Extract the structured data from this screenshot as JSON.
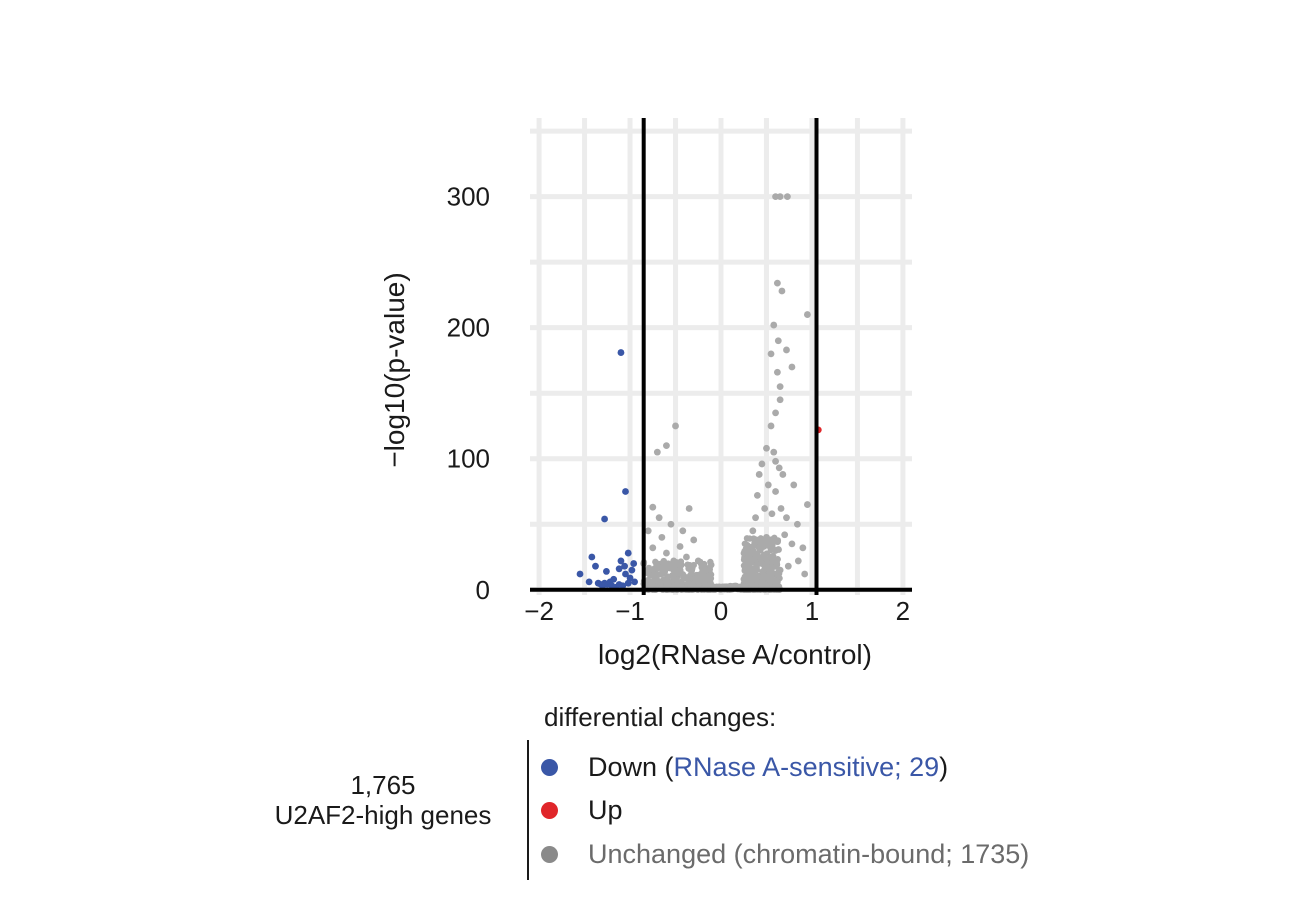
{
  "chart_data": {
    "type": "scatter",
    "xlabel": "log2(RNase A/control)",
    "ylabel": "−log10(p-value)",
    "xlim": [
      -2.1,
      2.1
    ],
    "ylim": [
      -4,
      360
    ],
    "xticks": [
      -2,
      -1,
      0,
      1,
      2
    ],
    "xtick_labels": [
      "−2",
      "−1",
      "0",
      "1",
      "2"
    ],
    "yticks": [
      0,
      100,
      200,
      300
    ],
    "ytick_labels": [
      "0",
      "100",
      "200",
      "300"
    ],
    "vlines": [
      -0.85,
      1.05
    ],
    "hline": 0,
    "grid": true,
    "colors": {
      "down": "#3a57a7",
      "up": "#e0262a",
      "unchanged": "#aaaaaa"
    },
    "series": [
      {
        "name": "Down",
        "color": "#3a57a7",
        "points": [
          [
            -1.1,
            181
          ],
          [
            -1.05,
            75
          ],
          [
            -1.28,
            54
          ],
          [
            -1.42,
            25
          ],
          [
            -1.55,
            12
          ],
          [
            -1.35,
            5
          ],
          [
            -1.25,
            4
          ],
          [
            -1.18,
            8
          ],
          [
            -1.1,
            22
          ],
          [
            -1.02,
            28
          ],
          [
            -0.98,
            15
          ],
          [
            -1.05,
            12
          ],
          [
            -1.45,
            6
          ],
          [
            -1.3,
            3
          ],
          [
            -1.22,
            6
          ],
          [
            -1.12,
            16
          ],
          [
            -1.0,
            9
          ],
          [
            -0.95,
            6
          ],
          [
            -1.08,
            3
          ],
          [
            -1.15,
            2
          ],
          [
            -1.38,
            18
          ],
          [
            -1.28,
            5
          ],
          [
            -1.06,
            18
          ],
          [
            -0.96,
            20
          ],
          [
            -1.2,
            3
          ],
          [
            -1.32,
            4
          ],
          [
            -1.02,
            5
          ],
          [
            -1.26,
            14
          ],
          [
            -1.12,
            4
          ]
        ]
      },
      {
        "name": "Up",
        "color": "#e0262a",
        "points": [
          [
            1.07,
            122
          ]
        ]
      },
      {
        "name": "Unchanged",
        "color": "#aaaaaa",
        "points": [
          [
            0.6,
            300
          ],
          [
            0.65,
            300
          ],
          [
            0.73,
            300
          ],
          [
            0.62,
            234
          ],
          [
            0.67,
            228
          ],
          [
            0.95,
            210
          ],
          [
            0.58,
            202
          ],
          [
            0.55,
            180
          ],
          [
            0.72,
            183
          ],
          [
            0.78,
            170
          ],
          [
            0.63,
            190
          ],
          [
            0.62,
            166
          ],
          [
            0.65,
            155
          ],
          [
            0.65,
            145
          ],
          [
            0.6,
            135
          ],
          [
            0.55,
            125
          ],
          [
            0.5,
            108
          ],
          [
            0.58,
            105
          ],
          [
            0.6,
            98
          ],
          [
            0.64,
            93
          ],
          [
            0.68,
            88
          ],
          [
            0.45,
            96
          ],
          [
            0.42,
            88
          ],
          [
            0.52,
            80
          ],
          [
            0.6,
            75
          ],
          [
            0.8,
            80
          ],
          [
            0.95,
            65
          ],
          [
            0.4,
            72
          ],
          [
            0.48,
            62
          ],
          [
            0.56,
            58
          ],
          [
            0.66,
            62
          ],
          [
            0.72,
            55
          ],
          [
            0.84,
            50
          ],
          [
            0.38,
            55
          ],
          [
            -0.5,
            125
          ],
          [
            -0.6,
            110
          ],
          [
            -0.7,
            105
          ],
          [
            -0.75,
            63
          ],
          [
            -0.68,
            55
          ],
          [
            -0.35,
            62
          ],
          [
            -0.55,
            50
          ],
          [
            -0.42,
            45
          ],
          [
            -0.8,
            45
          ],
          [
            -0.65,
            40
          ],
          [
            -0.75,
            32
          ],
          [
            -0.45,
            33
          ],
          [
            -0.3,
            38
          ],
          [
            -0.6,
            28
          ],
          [
            -0.52,
            22
          ],
          [
            -0.38,
            25
          ],
          [
            -0.7,
            18
          ],
          [
            -0.25,
            22
          ],
          [
            -0.85,
            20
          ],
          [
            0.35,
            45
          ],
          [
            0.5,
            40
          ],
          [
            0.7,
            42
          ],
          [
            0.78,
            35
          ],
          [
            0.9,
            32
          ],
          [
            0.6,
            30
          ],
          [
            0.42,
            32
          ],
          [
            0.3,
            28
          ],
          [
            0.55,
            25
          ],
          [
            0.85,
            22
          ],
          [
            0.74,
            18
          ],
          [
            0.45,
            20
          ],
          [
            0.65,
            15
          ],
          [
            0.92,
            12
          ],
          [
            0.3,
            15
          ]
        ],
        "cluster_note": "dense mass of points near origin"
      }
    ]
  },
  "legend": {
    "title": "differential changes:",
    "down_label": "Down (",
    "down_note": "RNase A-sensitive; 29",
    "down_close": ")",
    "up_label": "Up",
    "unchanged_label": "Unchanged (chromatin-bound; 1735)"
  },
  "gene_count": {
    "number": "1,765",
    "label": "U2AF2-high genes"
  }
}
